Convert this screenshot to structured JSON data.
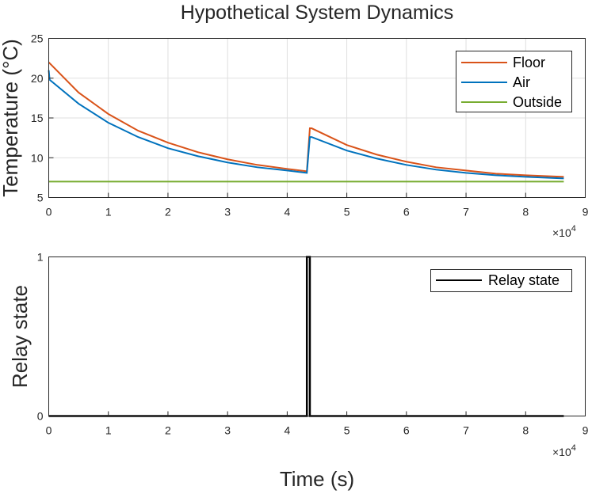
{
  "title": "Hypothetical System Dynamics",
  "xlabel": "Time (s)",
  "colors": {
    "floor": "#D95319",
    "air": "#0072BD",
    "outside": "#77AC30",
    "relay": "#000000",
    "grid": "#dfdfdf",
    "axis": "#262626"
  },
  "chart_data": [
    {
      "type": "line",
      "ylabel": "Temperature (°C)",
      "xlim": [
        0,
        90000
      ],
      "ylim": [
        5,
        25
      ],
      "x_ticks": [
        0,
        1,
        2,
        3,
        4,
        5,
        6,
        7,
        8,
        9
      ],
      "y_ticks": [
        5,
        10,
        15,
        20,
        25
      ],
      "x_exponent_base": "×10",
      "x_exponent_power": "4",
      "grid": true,
      "legend_position": "top-right",
      "series": [
        {
          "name": "Floor",
          "color_key": "floor",
          "x": [
            0,
            5000,
            10000,
            15000,
            20000,
            25000,
            30000,
            35000,
            40000,
            43300,
            43800,
            44100,
            50000,
            55000,
            60000,
            65000,
            70000,
            75000,
            80000,
            86400
          ],
          "y": [
            22.0,
            18.2,
            15.5,
            13.4,
            11.9,
            10.7,
            9.8,
            9.1,
            8.6,
            8.3,
            13.7,
            13.7,
            11.6,
            10.4,
            9.5,
            8.8,
            8.4,
            8.0,
            7.8,
            7.6
          ]
        },
        {
          "name": "Air",
          "color_key": "air",
          "x": [
            0,
            150,
            5000,
            10000,
            15000,
            20000,
            25000,
            30000,
            35000,
            40000,
            43300,
            43800,
            44100,
            50000,
            55000,
            60000,
            65000,
            70000,
            75000,
            80000,
            86400
          ],
          "y": [
            21.0,
            19.8,
            16.8,
            14.4,
            12.6,
            11.2,
            10.2,
            9.4,
            8.8,
            8.4,
            8.1,
            12.6,
            12.6,
            10.9,
            9.9,
            9.1,
            8.5,
            8.1,
            7.8,
            7.6,
            7.4
          ]
        },
        {
          "name": "Outside",
          "color_key": "outside",
          "x": [
            0,
            86400
          ],
          "y": [
            7.0,
            7.0
          ]
        }
      ]
    },
    {
      "type": "line",
      "ylabel": "Relay state",
      "xlim": [
        0,
        90000
      ],
      "ylim": [
        0,
        1
      ],
      "x_ticks": [
        0,
        1,
        2,
        3,
        4,
        5,
        6,
        7,
        8,
        9
      ],
      "y_ticks": [
        0,
        1
      ],
      "x_exponent_base": "×10",
      "x_exponent_power": "4",
      "grid": false,
      "legend_position": "top-right",
      "series": [
        {
          "name": "Relay state",
          "color_key": "relay",
          "x": [
            0,
            43300,
            43300,
            43800,
            43800,
            86400
          ],
          "y": [
            0,
            0,
            1,
            1,
            0,
            0
          ]
        }
      ]
    }
  ]
}
